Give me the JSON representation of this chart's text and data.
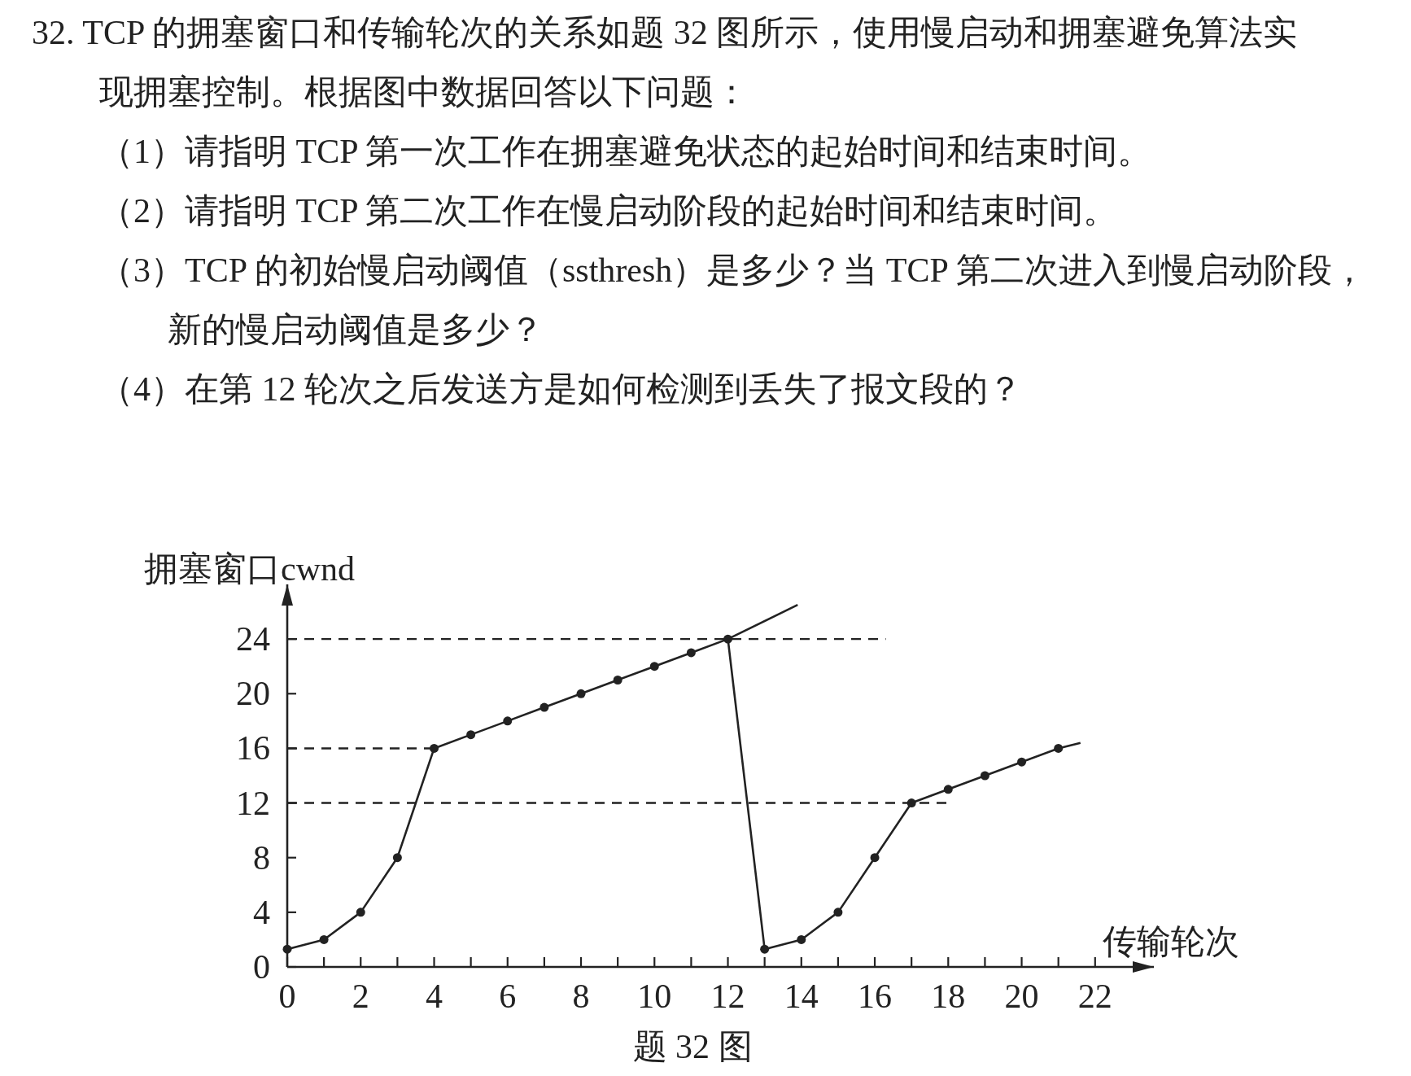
{
  "chart_data": {
    "type": "line",
    "annotations": [
      "32. TCP 的拥塞窗口和传输轮次的关系如题 32 图所示，使用慢启动和拥塞避免算法实现拥塞控制。根据图中数据回答以下问题：",
      "（1）请指明 TCP 第一次工作在拥塞避免状态的起始时间和结束时间。",
      "（2）请指明 TCP 第二次工作在慢启动阶段的起始时间和结束时间。",
      "（3）TCP 的初始慢启动阈值（ssthresh）是多少？当 TCP 第二次进入到慢启动阶段，新的慢启动阈值是多少？",
      "（4）在第 12 轮次之后发送方是如何检测到丢失了报文段的？",
      "题 32 图"
    ],
    "xlabel": "传输轮次",
    "ylabel": "拥塞窗口cwnd",
    "xlim": [
      0,
      23.6
    ],
    "ylim": [
      0,
      28
    ],
    "xticks": [
      0,
      {
        "value": 1,
        "label": null
      },
      2,
      {
        "value": 3,
        "label": null
      },
      4,
      {
        "value": 5,
        "label": null
      },
      6,
      {
        "value": 7,
        "label": null
      },
      8,
      {
        "value": 9,
        "label": null
      },
      10,
      {
        "value": 11,
        "label": null
      },
      12,
      {
        "value": 13,
        "label": null
      },
      14,
      {
        "value": 15,
        "label": null
      },
      16,
      {
        "value": 17,
        "label": null
      },
      18,
      {
        "value": 19,
        "label": null
      },
      20,
      {
        "value": 21,
        "label": null
      },
      22
    ],
    "yticks": [
      0,
      4,
      8,
      12,
      16,
      20,
      24
    ],
    "marker": "circle",
    "line_style": "solid",
    "series": [
      {
        "color": "#222222",
        "x": [
          0,
          1,
          2,
          3,
          4,
          5,
          6,
          7,
          8,
          9,
          10,
          11,
          12,
          13,
          14,
          15,
          16,
          17,
          18,
          19,
          20,
          21
        ],
        "values": [
          1.3,
          2,
          4,
          8,
          16,
          17,
          18,
          19,
          20,
          21,
          22,
          23,
          24,
          1.3,
          2,
          4,
          8,
          12,
          13,
          14,
          15,
          16
        ]
      },
      {
        "color": "#222222",
        "x": [
          12,
          13.9
        ],
        "values": [
          24,
          26.5
        ],
        "marker": "none"
      },
      {
        "color": "#222222",
        "x": [
          21,
          21.6
        ],
        "values": [
          16,
          16.4
        ],
        "marker": "none"
      },
      {
        "color": "#222222",
        "x": [
          0,
          16.3
        ],
        "values": [
          24,
          24
        ],
        "marker": "none",
        "line_style": "dashed"
      },
      {
        "color": "#222222",
        "x": [
          0,
          4
        ],
        "values": [
          16,
          16
        ],
        "marker": "none",
        "line_style": "dashed"
      },
      {
        "color": "#222222",
        "x": [
          0,
          18
        ],
        "values": [
          12,
          12
        ],
        "marker": "none",
        "line_style": "dashed"
      }
    ]
  }
}
